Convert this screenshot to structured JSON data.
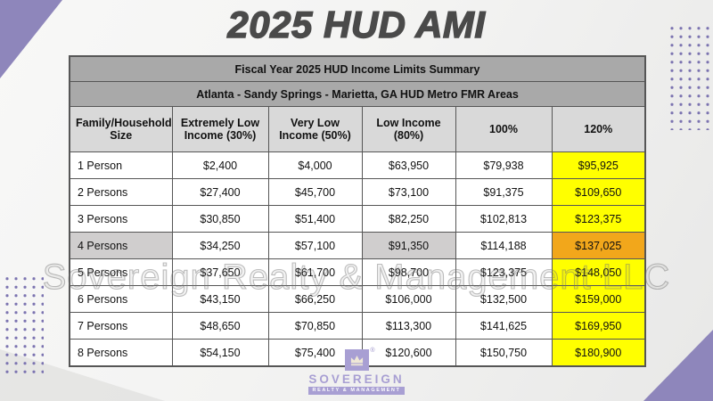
{
  "page": {
    "title": "2025 HUD AMI"
  },
  "table": {
    "title": "Fiscal Year 2025 HUD Income Limits Summary",
    "subtitle": "Atlanta - Sandy Springs - Marietta, GA HUD Metro FMR Areas",
    "columns": [
      "Family/Household Size",
      "Extremely Low Income (30%)",
      "Very Low Income (50%)",
      "Low Income (80%)",
      "100%",
      "120%"
    ],
    "rows": [
      {
        "label": "1 Person",
        "label_highlight": null,
        "values": [
          "$2,400",
          "$4,000",
          "$63,950",
          "$79,938",
          "$95,925"
        ],
        "value_highlights": [
          null,
          null,
          null,
          null,
          "yellow"
        ]
      },
      {
        "label": "2 Persons",
        "label_highlight": null,
        "values": [
          "$27,400",
          "$45,700",
          "$73,100",
          "$91,375",
          "$109,650"
        ],
        "value_highlights": [
          null,
          null,
          null,
          null,
          "yellow"
        ]
      },
      {
        "label": "3 Persons",
        "label_highlight": null,
        "values": [
          "$30,850",
          "$51,400",
          "$82,250",
          "$102,813",
          "$123,375"
        ],
        "value_highlights": [
          null,
          null,
          null,
          null,
          "yellow"
        ]
      },
      {
        "label": "4 Persons",
        "label_highlight": "gray",
        "values": [
          "$34,250",
          "$57,100",
          "$91,350",
          "$114,188",
          "$137,025"
        ],
        "value_highlights": [
          null,
          null,
          "gray",
          null,
          "orange"
        ]
      },
      {
        "label": "5 Persons",
        "label_highlight": null,
        "values": [
          "$37,650",
          "$61,700",
          "$98,700",
          "$123,375",
          "$148,050"
        ],
        "value_highlights": [
          null,
          null,
          null,
          null,
          "yellow"
        ]
      },
      {
        "label": "6 Persons",
        "label_highlight": null,
        "values": [
          "$43,150",
          "$66,250",
          "$106,000",
          "$132,500",
          "$159,000"
        ],
        "value_highlights": [
          null,
          null,
          null,
          null,
          "yellow"
        ]
      },
      {
        "label": "7 Persons",
        "label_highlight": null,
        "values": [
          "$48,650",
          "$70,850",
          "$113,300",
          "$141,625",
          "$169,950"
        ],
        "value_highlights": [
          null,
          null,
          null,
          null,
          "yellow"
        ]
      },
      {
        "label": "8 Persons",
        "label_highlight": null,
        "values": [
          "$54,150",
          "$75,400",
          "$120,600",
          "$150,750",
          "$180,900"
        ],
        "value_highlights": [
          null,
          null,
          null,
          null,
          "yellow"
        ]
      }
    ]
  },
  "watermark": "Sovereign Realty & Management LLC",
  "logo": {
    "name": "SOVEREIGN",
    "tagline": "REALTY & MANAGEMENT",
    "registered": "®"
  },
  "colors": {
    "accent_lavender": "#8E86BB",
    "logo_lavender": "#A89FD3",
    "dot_purple": "#7B73B0",
    "highlight_yellow": "#FFFF00",
    "highlight_orange": "#F2A71B",
    "highlight_gray": "#D0CECE",
    "header_gray": "#A9A9A9",
    "column_header_gray": "#D9D9D9"
  }
}
